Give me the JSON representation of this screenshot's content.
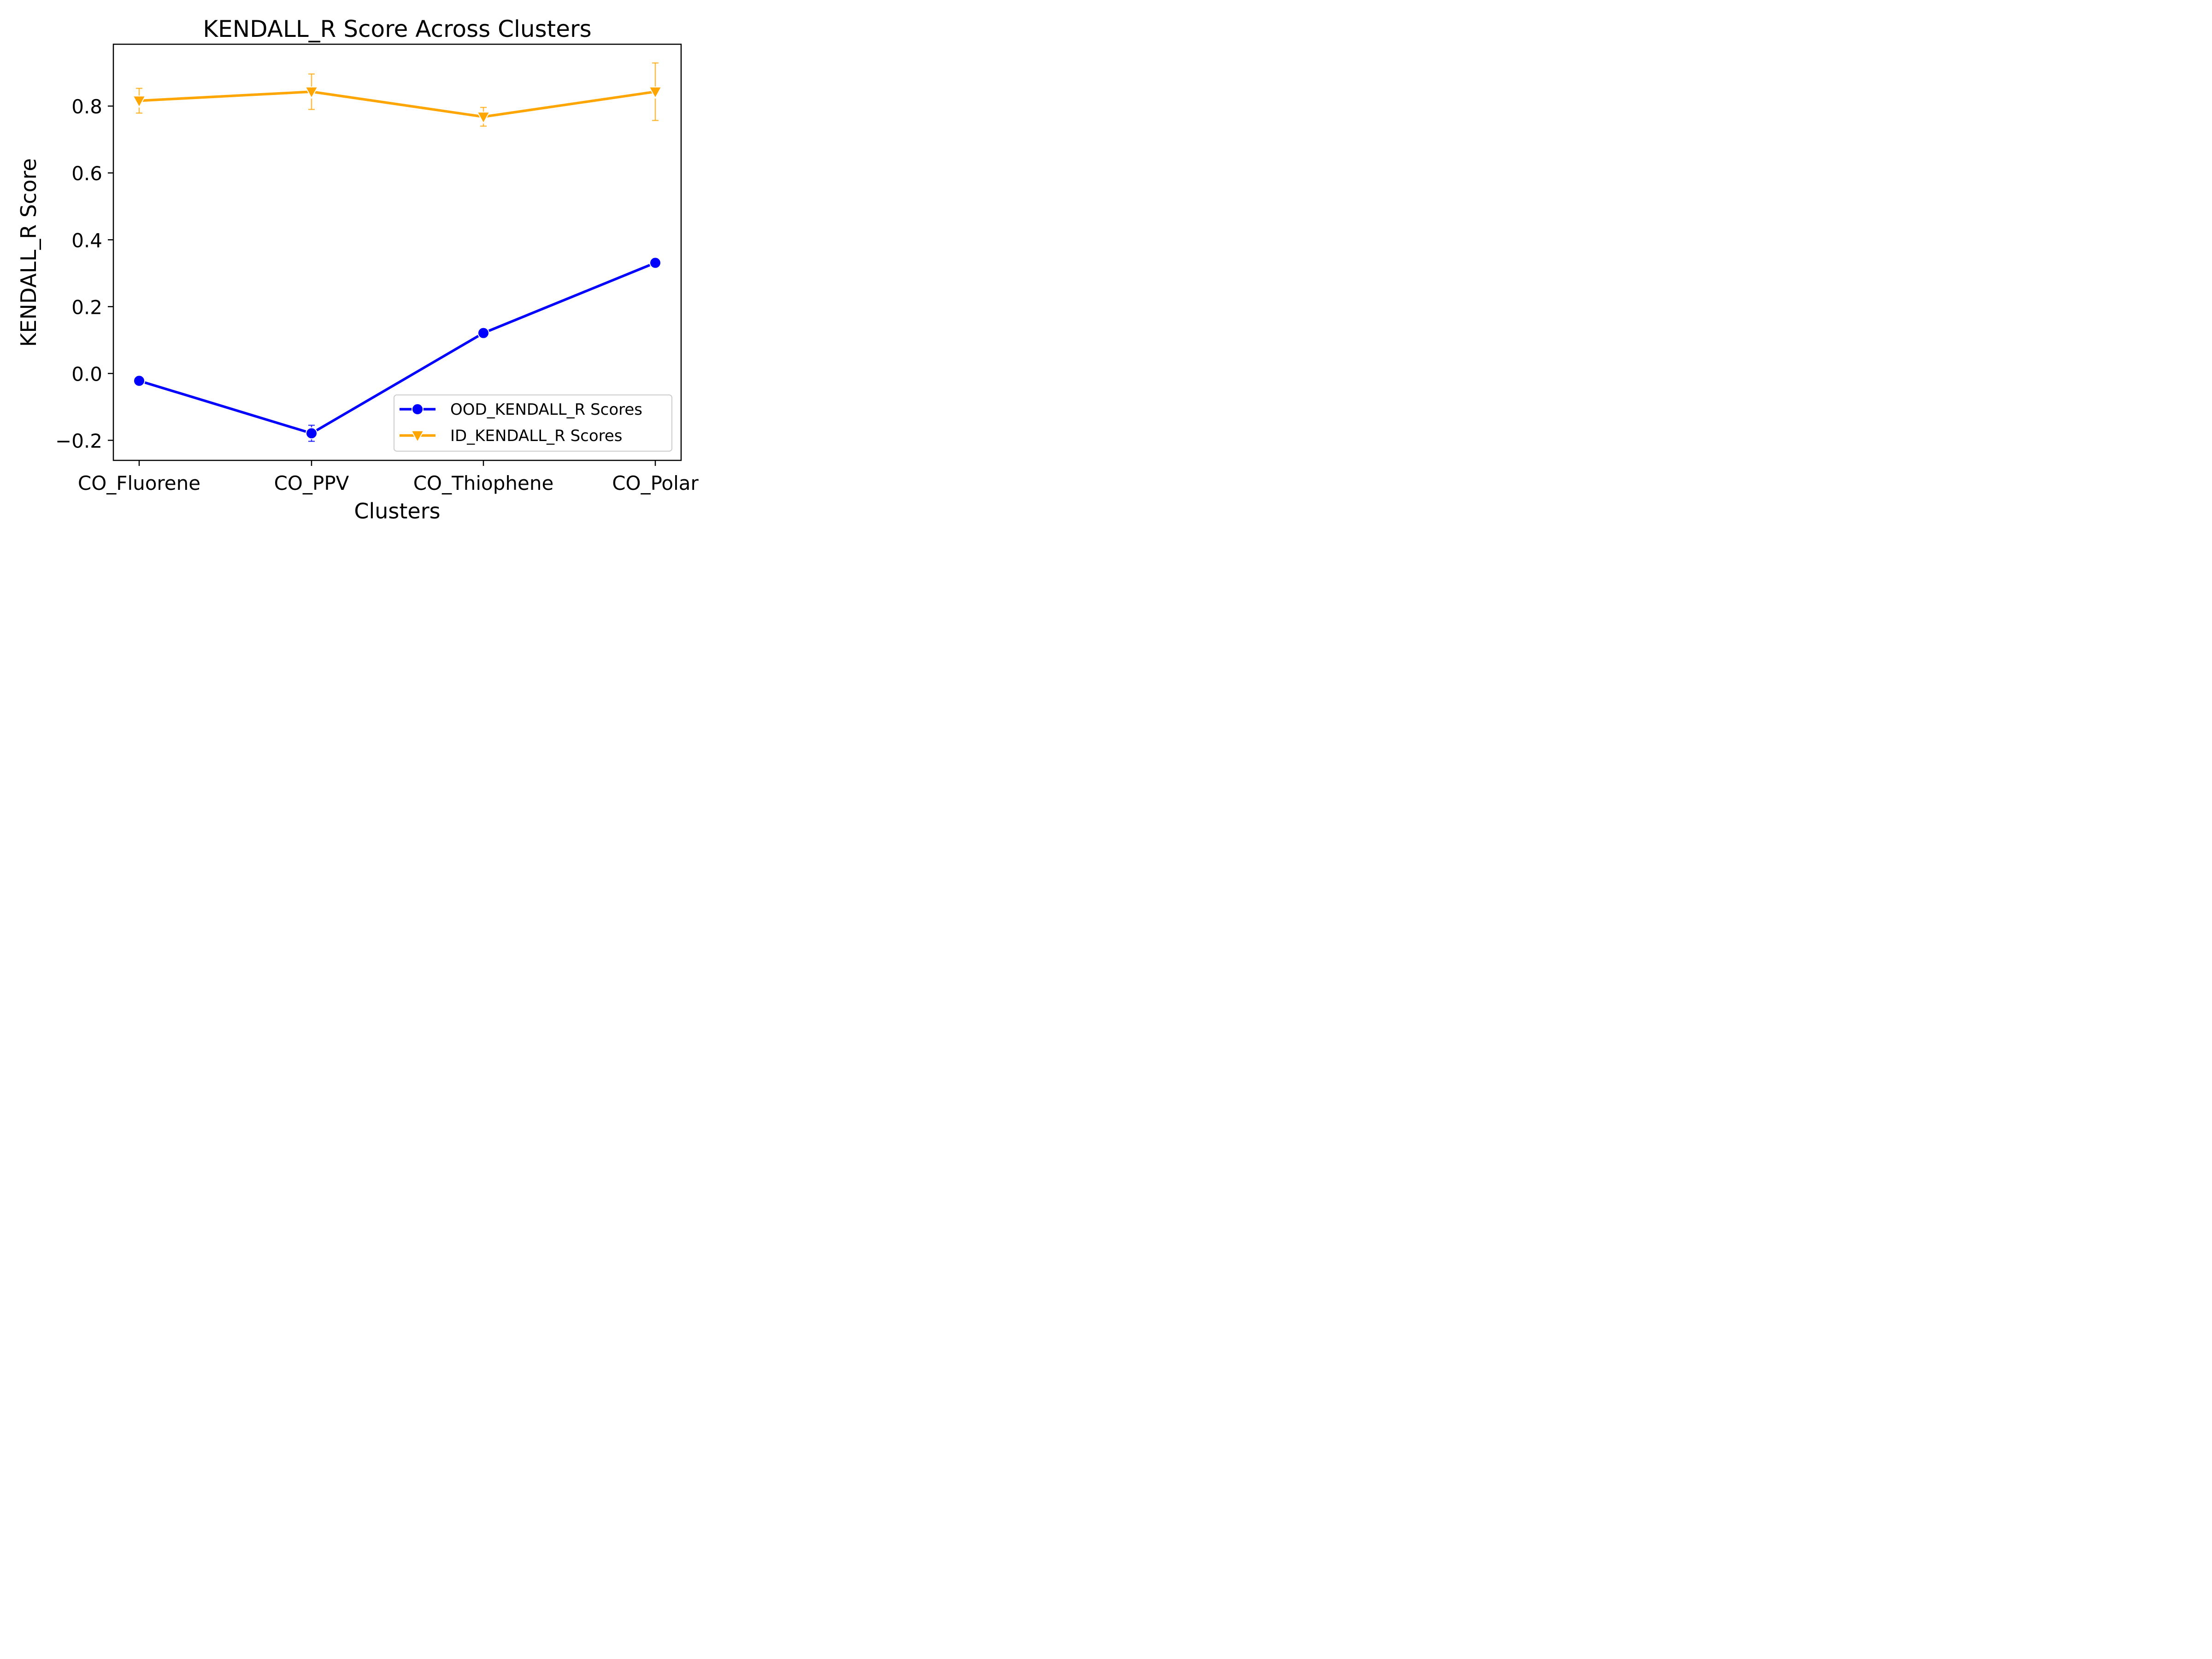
{
  "chart_data": {
    "type": "line",
    "title": "KENDALL_R Score Across Clusters",
    "xlabel": "Clusters",
    "ylabel": "KENDALL_R Score",
    "categories": [
      "CO_Fluorene",
      "CO_PPV",
      "CO_Thiophene",
      "CO_Polar"
    ],
    "ylim": [
      -0.26,
      0.985
    ],
    "yticks": [
      -0.2,
      0.0,
      0.2,
      0.4,
      0.6,
      0.8
    ],
    "ytick_labels": [
      "−0.2",
      "0.0",
      "0.2",
      "0.4",
      "0.6",
      "0.8"
    ],
    "grid": false,
    "legend_position": "lower right",
    "series": [
      {
        "name": "OOD_KENDALL_R Scores",
        "color": "#0000ff",
        "marker": "circle",
        "values": [
          -0.022,
          -0.179,
          0.121,
          0.331
        ],
        "errors": [
          0.0,
          0.024,
          0.01,
          0.0
        ]
      },
      {
        "name": "ID_KENDALL_R Scores",
        "color": "#ffa500",
        "marker": "triangle-down",
        "values": [
          0.816,
          0.843,
          0.768,
          0.843
        ],
        "errors": [
          0.037,
          0.053,
          0.028,
          0.086
        ]
      }
    ]
  }
}
